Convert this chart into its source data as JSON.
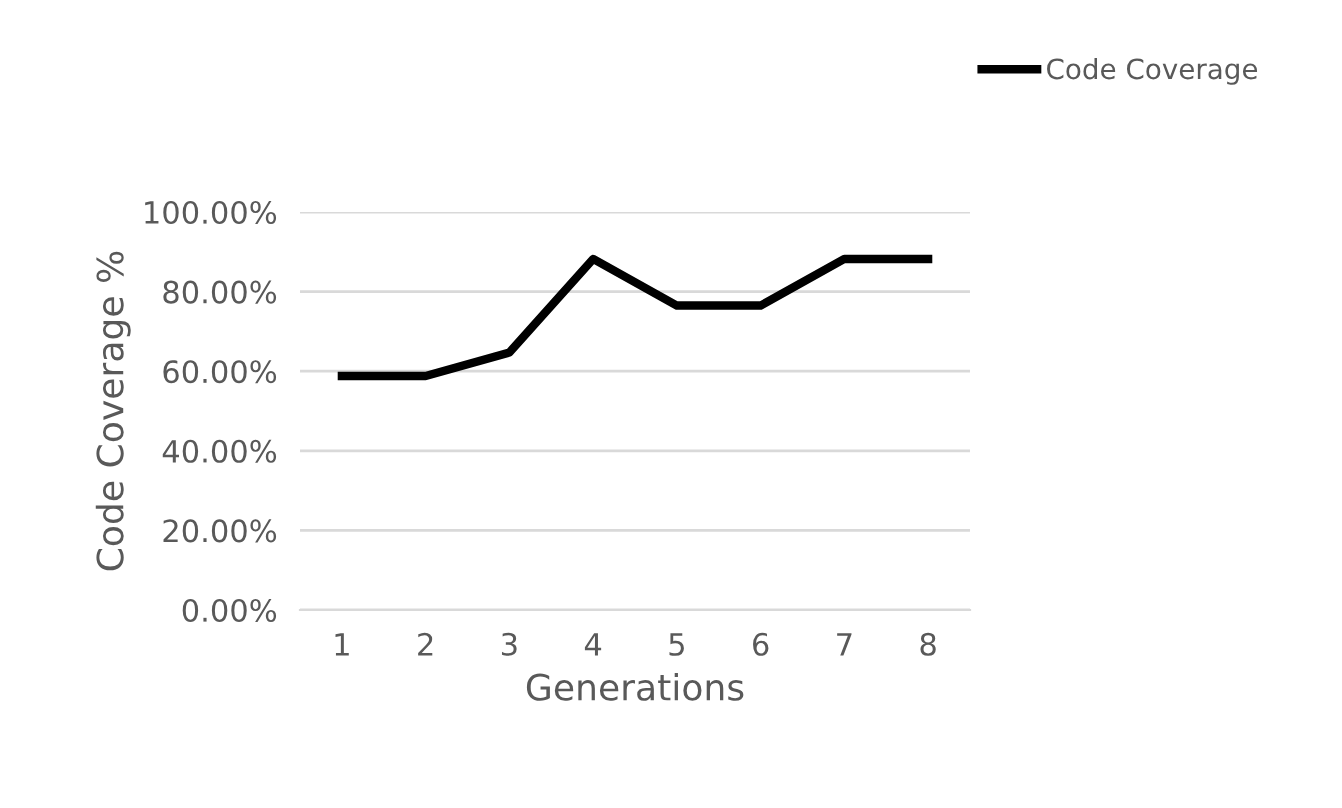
{
  "chart_data": {
    "type": "line",
    "xlabel": "Generations",
    "ylabel": "Code Coverage %",
    "categories": [
      "1",
      "2",
      "3",
      "4",
      "5",
      "6",
      "7",
      "8"
    ],
    "series": [
      {
        "name": "Code Coverage",
        "color": "#000000",
        "values": [
          58.8,
          58.8,
          64.7,
          88.2,
          76.5,
          76.5,
          88.2,
          88.2
        ]
      }
    ],
    "ylim": [
      0,
      100
    ],
    "yticks": [
      {
        "value": 0,
        "label": "0.00%"
      },
      {
        "value": 20,
        "label": "20.00%"
      },
      {
        "value": 40,
        "label": "40.00%"
      },
      {
        "value": 60,
        "label": "60.00%"
      },
      {
        "value": 80,
        "label": "80.00%"
      },
      {
        "value": 100,
        "label": "100.00%"
      }
    ],
    "grid": "y",
    "legend": "top right",
    "marker": "none",
    "line_style": "solid"
  }
}
